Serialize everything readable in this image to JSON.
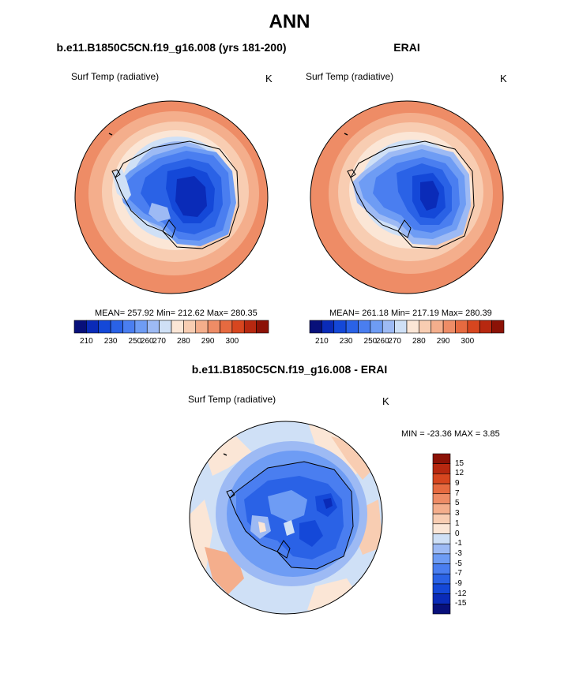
{
  "header": {
    "title": "ANN"
  },
  "panels": [
    {
      "title": "b.e11.B1850C5CN.f19_g16.008 (yrs 181-200)",
      "variable": "Surf Temp (radiative)",
      "units": "K",
      "stats": "MEAN= 257.92  Min= 212.62  Max= 280.35"
    },
    {
      "title": "ERAI",
      "variable": "Surf Temp (radiative)",
      "units": "K",
      "stats": "MEAN= 261.18  Min= 217.19  Max= 280.39"
    },
    {
      "title": "b.e11.B1850C5CN.f19_g16.008 - ERAI",
      "variable": "Surf Temp (radiative)",
      "units": "K",
      "stats": "MIN = -23.36 MAX =   3.85"
    }
  ],
  "colorbars": {
    "absolute": {
      "labels": [
        "210",
        "230",
        "250",
        "260",
        "270",
        "280",
        "290",
        "300"
      ],
      "colors": [
        "#08107a",
        "#0a2bb8",
        "#1448d8",
        "#2a62e6",
        "#4a7ef0",
        "#6e9cf4",
        "#9dbaf4",
        "#cfe0f6",
        "#fbe6d6",
        "#f8cdb2",
        "#f4ae8c",
        "#ee8c66",
        "#e66a40",
        "#d7461f",
        "#b72810",
        "#8c1206"
      ]
    },
    "difference": {
      "labels": [
        "15",
        "12",
        "9",
        "7",
        "5",
        "3",
        "1",
        "0",
        "-1",
        "-3",
        "-5",
        "-7",
        "-9",
        "-12",
        "-15"
      ],
      "colors": [
        "#8c1206",
        "#b72810",
        "#d7461f",
        "#e66a40",
        "#ee8c66",
        "#f4ae8c",
        "#f8cdb2",
        "#fbe6d6",
        "#cfe0f6",
        "#9dbaf4",
        "#6e9cf4",
        "#4a7ef0",
        "#2a62e6",
        "#1448d8",
        "#0a2bb8",
        "#08107a"
      ]
    }
  }
}
